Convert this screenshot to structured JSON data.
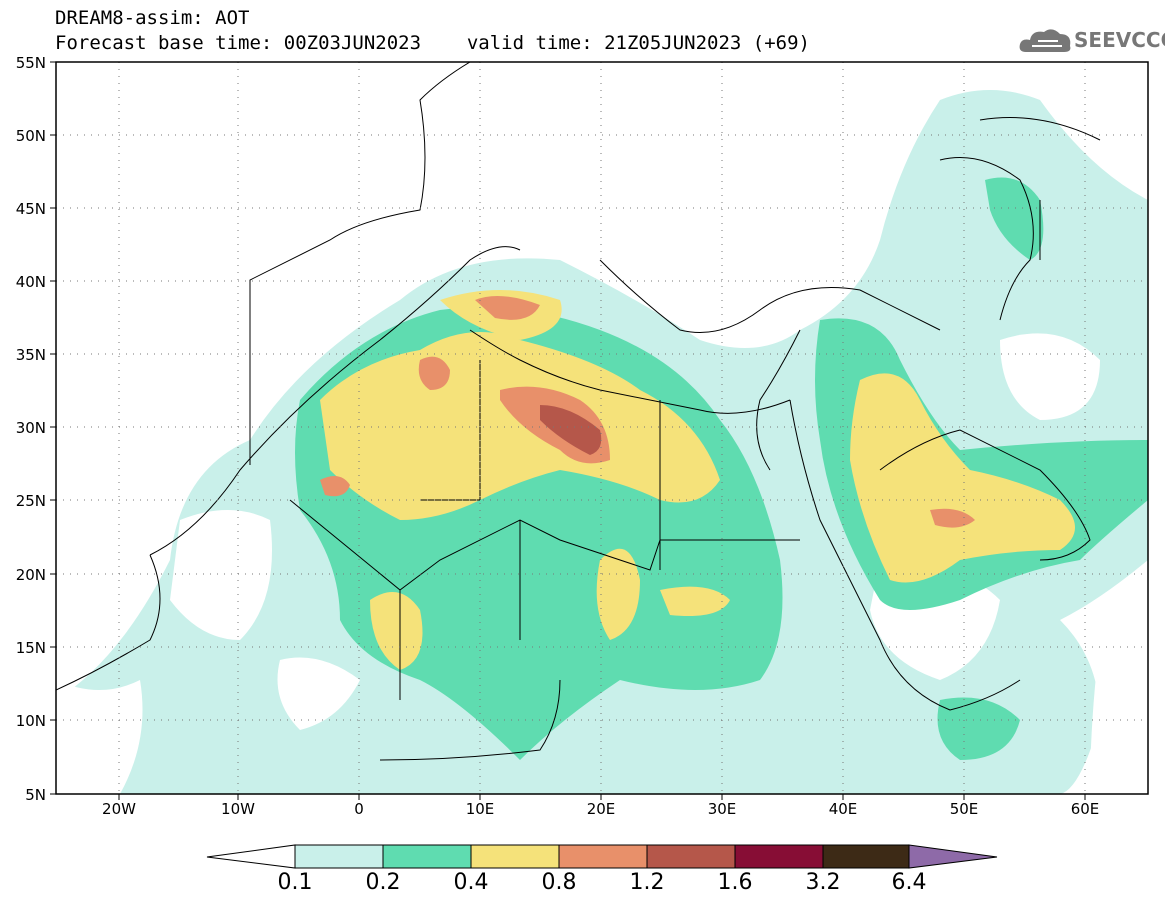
{
  "header": {
    "title_line1": "DREAM8-assim: AOT",
    "base_time": "Forecast base time: 00Z03JUN2023",
    "valid_time": "valid time: 21Z05JUN2023 (+69)"
  },
  "logo": {
    "text": "SEEVCCC",
    "icon": "cloud-icon"
  },
  "map": {
    "lat_labels": [
      "55N",
      "50N",
      "45N",
      "40N",
      "35N",
      "30N",
      "25N",
      "20N",
      "15N",
      "10N",
      "5N"
    ],
    "lon_labels": [
      "20W",
      "10W",
      "0",
      "10E",
      "20E",
      "30E",
      "40E",
      "50E",
      "60E"
    ],
    "lon_range": [
      -25,
      65
    ],
    "lat_range": [
      5,
      55
    ],
    "grid": "dotted"
  },
  "colorbar": {
    "labels": [
      "0.1",
      "0.2",
      "0.4",
      "0.8",
      "1.2",
      "1.6",
      "3.2",
      "6.4"
    ],
    "colors": [
      "#c9f0ea",
      "#5fdcb0",
      "#f5e27a",
      "#e8906a",
      "#b5574a",
      "#870d35",
      "#3d2a16",
      "#8e6aa8"
    ],
    "extend": "both"
  },
  "colors": {
    "background": "#ffffff",
    "text": "#000000",
    "logo": "#777777"
  }
}
